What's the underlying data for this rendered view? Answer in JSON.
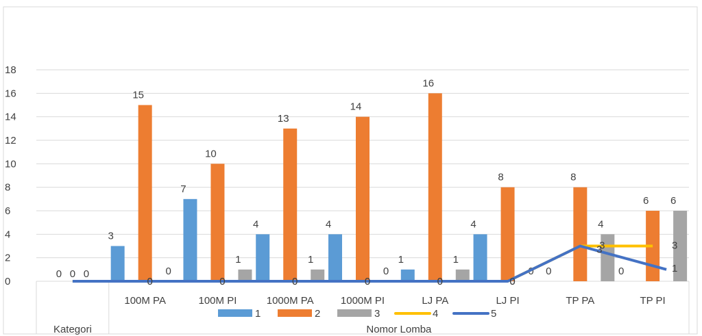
{
  "chart_data": {
    "type": "bar",
    "categories": [
      "",
      "100M PA",
      "100M PI",
      "1000M PA",
      "1000M PI",
      "LJ PA",
      "LJ PI",
      "TP PA",
      "TP PI"
    ],
    "groups": [
      {
        "label": "Kategori",
        "span": 1
      },
      {
        "label": "Nomor Lomba",
        "span": 8
      }
    ],
    "ylim": [
      0,
      18
    ],
    "yticks": [
      0,
      2,
      4,
      6,
      8,
      10,
      12,
      14,
      16,
      18
    ],
    "grid": true,
    "legend_position": "bottom",
    "series": [
      {
        "name": "1",
        "kind": "bar",
        "color": "#5B9BD5",
        "values": [
          0,
          3,
          7,
          4,
          4,
          1,
          4,
          0,
          0
        ]
      },
      {
        "name": "2",
        "kind": "bar",
        "color": "#ED7D31",
        "values": [
          0,
          15,
          10,
          13,
          14,
          16,
          8,
          8,
          6
        ]
      },
      {
        "name": "3",
        "kind": "bar",
        "color": "#A5A5A5",
        "values": [
          0,
          0,
          1,
          1,
          0,
          1,
          0,
          4,
          6
        ]
      },
      {
        "name": "4",
        "kind": "line",
        "color": "#FFC000",
        "values": [
          0,
          0,
          0,
          0,
          0,
          0,
          0,
          3,
          3
        ]
      },
      {
        "name": "5",
        "kind": "line",
        "color": "#4472C4",
        "values": [
          0,
          0,
          0,
          0,
          0,
          0,
          0,
          3,
          1
        ]
      }
    ]
  }
}
